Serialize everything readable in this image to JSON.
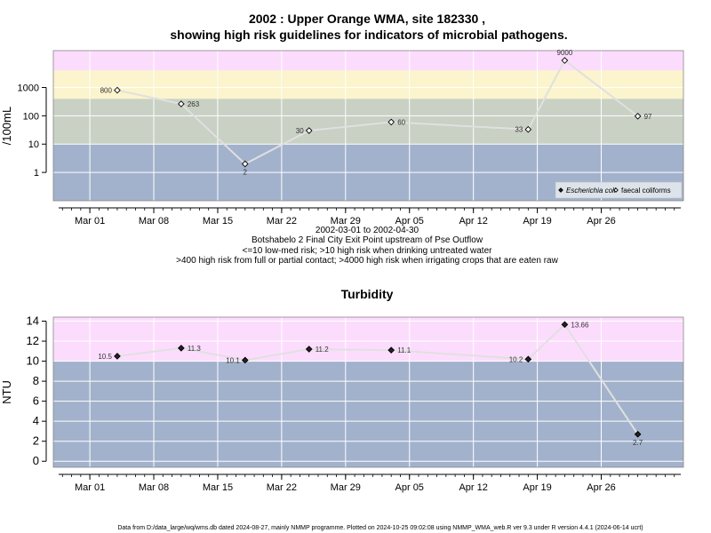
{
  "colors": {
    "band_pink": "#fcdcfc",
    "band_yellow": "#fbf4cc",
    "band_sage": "#c9d0c4",
    "band_blue": "#a2b2cc",
    "grid": "#ffffff",
    "series_line": "#e0e0e0",
    "marker_fill": "#ffffff",
    "marker_fill_dark": "#222222"
  },
  "chart_data": [
    {
      "type": "line",
      "title": "2002 : Upper Orange WMA, site 182330 ,",
      "subtitle": "showing high risk guidelines for indicators of microbial pathogens.",
      "ylabel": "/100mL",
      "y_scale": "log10",
      "ylim": [
        0.1,
        20000
      ],
      "yticks": [
        1,
        10,
        100,
        1000
      ],
      "ytick_labels": [
        "1",
        "10",
        "100",
        "1000"
      ],
      "xlim": [
        "2002-02-25",
        "2002-05-05"
      ],
      "xticks": [
        "2002-03-01",
        "2002-03-08",
        "2002-03-15",
        "2002-03-22",
        "2002-03-29",
        "2002-04-05",
        "2002-04-12",
        "2002-04-19",
        "2002-04-26"
      ],
      "xtick_labels": [
        "Mar 01",
        "Mar 08",
        "Mar 15",
        "Mar 22",
        "Mar 29",
        "Apr 05",
        "Apr 12",
        "Apr 19",
        "Apr 26"
      ],
      "grid": true,
      "bands": [
        {
          "from": 0.1,
          "to": 10,
          "color_key": "band_blue"
        },
        {
          "from": 10,
          "to": 400,
          "color_key": "band_sage"
        },
        {
          "from": 400,
          "to": 4000,
          "color_key": "band_yellow"
        },
        {
          "from": 4000,
          "to": 20000,
          "color_key": "band_pink"
        }
      ],
      "series": [
        {
          "name": "faecal coliforms",
          "marker": "open-diamond",
          "x": [
            "2002-03-04",
            "2002-03-11",
            "2002-03-18",
            "2002-03-25",
            "2002-04-03",
            "2002-04-18",
            "2002-04-22",
            "2002-04-30"
          ],
          "values": [
            800,
            263,
            2,
            30,
            60,
            33,
            9000,
            97
          ],
          "labels": [
            "800",
            "263",
            "2",
            "30",
            "60",
            "33",
            "9000",
            "97"
          ],
          "label_side": [
            "left",
            "right",
            "below",
            "left",
            "right",
            "left",
            "above",
            "right"
          ]
        }
      ],
      "legend": {
        "placement": "bottom-right",
        "entries": [
          {
            "label": "Escherichia coli",
            "marker": "filled-diamond",
            "italic": true
          },
          {
            "label": "faecal coliforms",
            "marker": "open-diamond",
            "italic": false
          }
        ]
      },
      "caption_lines": [
        "2002-03-01 to 2002-04-30",
        "Botshabelo 2 Final City Exit Point upstream of Pse Outflow",
        "<=10 low-med risk; >10 high risk when drinking untreated water",
        ">400 high risk from full or partial contact; >4000 high risk when irrigating crops that are eaten raw"
      ]
    },
    {
      "type": "line",
      "title": "Turbidity",
      "ylabel": "NTU",
      "ylim": [
        -0.6,
        14.4
      ],
      "yticks": [
        0,
        2,
        4,
        6,
        8,
        10,
        12,
        14
      ],
      "ytick_labels": [
        "0",
        "2",
        "4",
        "6",
        "8",
        "10",
        "12",
        "14"
      ],
      "xlim": [
        "2002-02-25",
        "2002-05-05"
      ],
      "xticks": [
        "2002-03-01",
        "2002-03-08",
        "2002-03-15",
        "2002-03-22",
        "2002-03-29",
        "2002-04-05",
        "2002-04-12",
        "2002-04-19",
        "2002-04-26"
      ],
      "xtick_labels": [
        "Mar 01",
        "Mar 08",
        "Mar 15",
        "Mar 22",
        "Mar 29",
        "Apr 05",
        "Apr 12",
        "Apr 19",
        "Apr 26"
      ],
      "grid": true,
      "bands": [
        {
          "from": -0.6,
          "to": 10,
          "color_key": "band_blue"
        },
        {
          "from": 10,
          "to": 14.4,
          "color_key": "band_pink"
        }
      ],
      "series": [
        {
          "marker": "filled-diamond",
          "x": [
            "2002-03-04",
            "2002-03-11",
            "2002-03-18",
            "2002-03-25",
            "2002-04-03",
            "2002-04-18",
            "2002-04-22",
            "2002-04-30"
          ],
          "values": [
            10.5,
            11.3,
            10.1,
            11.2,
            11.1,
            10.2,
            13.66,
            2.7
          ],
          "labels": [
            "10.5",
            "11.3",
            "10.1",
            "11.2",
            "11.1",
            "10.2",
            "13.66",
            "2.7"
          ],
          "label_side": [
            "left",
            "right",
            "left",
            "right",
            "right",
            "left",
            "right",
            "below"
          ]
        }
      ]
    }
  ],
  "footer": "Data from D:/data_large/wq/wms.db dated 2024-08-27, mainly NMMP programme. Plotted on 2024-10-25 09:02:08 using NMMP_WMA_web.R ver 9.3 under R version 4.4.1 (2024-06-14 ucrt)"
}
